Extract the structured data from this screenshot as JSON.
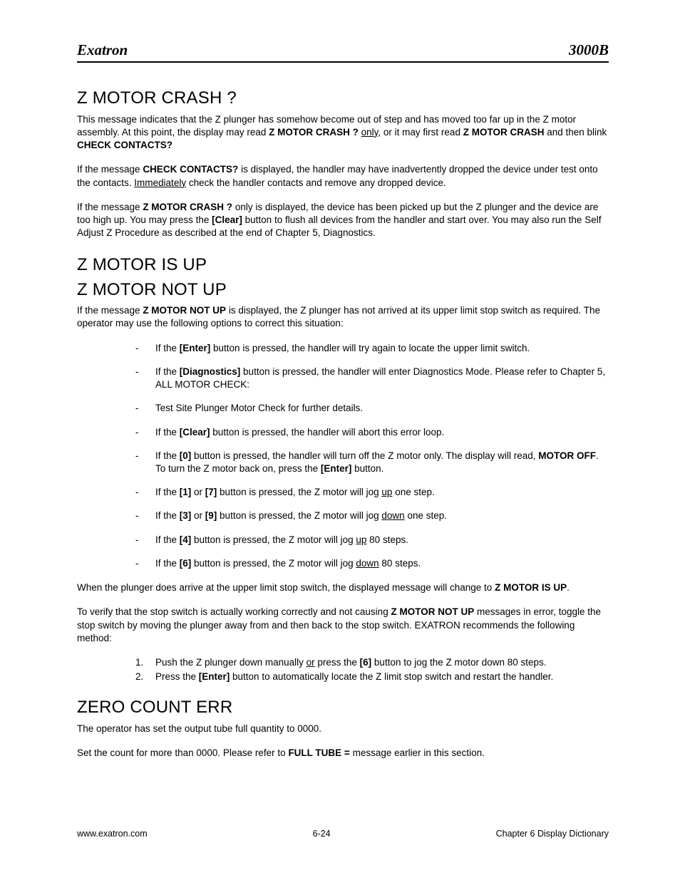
{
  "header": {
    "left": "Exatron",
    "right": "3000B"
  },
  "section1": {
    "title": "Z MOTOR CRASH ?",
    "p1_a": "This message indicates that the Z plunger has somehow become out of step and has moved too far up in the Z motor assembly.  At this point, the display may read ",
    "p1_b": "Z MOTOR CRASH ?",
    "p1_c": " ",
    "p1_d": "only",
    "p1_e": ", or it may first read ",
    "p1_f": "Z MOTOR CRASH",
    "p1_g": " and then blink ",
    "p1_h": "CHECK CONTACTS?",
    "p2_a": "If the message ",
    "p2_b": "CHECK CONTACTS?",
    "p2_c": " is displayed, the handler may have inadvertently dropped the device under test onto the contacts.  ",
    "p2_d": "Immediately",
    "p2_e": " check the handler contacts and remove any dropped device.",
    "p3_a": "If the message ",
    "p3_b": "Z MOTOR CRASH ?",
    "p3_c": " only is displayed, the device has been picked up but the Z plunger and the device are too high up. You may press the ",
    "p3_d": "[Clear]",
    "p3_e": " button to flush all devices from the handler and start over.  You may also run the Self Adjust Z Procedure as described at the end of Chapter 5, Diagnostics."
  },
  "section2": {
    "title1": "Z MOTOR IS UP",
    "title2": "Z MOTOR NOT UP",
    "p1_a": "If the message ",
    "p1_b": "Z MOTOR NOT UP",
    "p1_c": " is displayed, the Z plunger has not arrived at its upper limit stop switch as required.  The operator may use the following options to correct this situation:",
    "bullets": [
      {
        "pre": "If the ",
        "b": "[Enter]",
        "post": " button is pressed, the handler will try again to locate the upper limit switch."
      },
      {
        "pre": "If the ",
        "b": "[Diagnostics]",
        "post": " button is pressed, the handler will enter  Diagnostics Mode.  Please refer to Chapter 5, ALL MOTOR CHECK:"
      },
      {
        "pre": "Test Site Plunger Motor Check for further details.",
        "b": "",
        "post": ""
      },
      {
        "pre": "If the ",
        "b": "[Clear]",
        "post": " button is pressed, the handler will abort this error loop."
      },
      {
        "pre": "If the ",
        "b": "[0]",
        "mid1": " button is pressed, the handler will turn off the Z motor only. The display will read, ",
        "b2": "MOTOR OFF",
        "mid2": ".  To turn the Z motor back on, press the ",
        "b3": "[Enter]",
        "post": " button."
      },
      {
        "pre": "If the ",
        "b": "[1]",
        "mid1": " or ",
        "b2": "[7]",
        "mid2": " button is pressed, the Z motor will jog ",
        "u": "up",
        "post": " one step."
      },
      {
        "pre": "If the ",
        "b": "[3]",
        "mid1": " or ",
        "b2": "[9]",
        "mid2": " button is pressed, the Z motor will jog ",
        "u": "down",
        "post": " one step."
      },
      {
        "pre": "If the ",
        "b": "[4]",
        "mid2": " button is pressed, the Z motor will jog ",
        "u": "up",
        "post": " 80 steps."
      },
      {
        "pre": "If the ",
        "b": "[6]",
        "mid2": " button is pressed, the Z motor will jog ",
        "u": "down",
        "post": " 80 steps."
      }
    ],
    "p2_a": "When the plunger does arrive at the upper limit stop switch, the displayed message will change to ",
    "p2_b": "Z MOTOR IS UP",
    "p2_c": ".",
    "p3_a": "To verify that the stop switch is actually working correctly and not causing ",
    "p3_b": "Z MOTOR NOT UP",
    "p3_c": " messages in error, toggle the stop switch by moving the plunger away from and then back to the stop switch.  EXATRON recommends the following method:",
    "steps": [
      {
        "n": "1.",
        "pre": "Push the Z plunger down manually ",
        "u": "or",
        "mid": " press the ",
        "b": "[6]",
        "post": " button to jog the Z motor down 80 steps."
      },
      {
        "n": "2.",
        "pre": "Press the ",
        "b": "[Enter]",
        "post": " button to automatically locate the Z limit stop switch and restart the handler."
      }
    ]
  },
  "section3": {
    "title": "ZERO COUNT ERR",
    "p1": "The operator has set the output tube full quantity to 0000.",
    "p2_a": "Set the count for more than 0000.  Please refer to ",
    "p2_b": "FULL TUBE =",
    "p2_c": "  message earlier in this section."
  },
  "footer": {
    "left": "www.exatron.com",
    "center": "6-24",
    "right": "Chapter 6 Display Dictionary"
  }
}
